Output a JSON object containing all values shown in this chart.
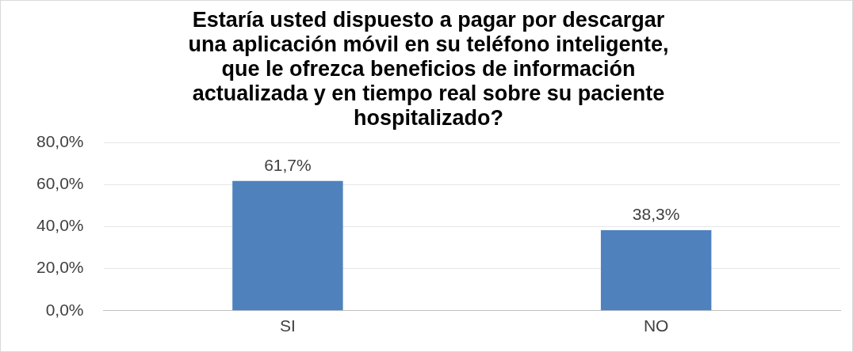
{
  "chart_data": {
    "type": "bar",
    "title": "Estaría usted dispuesto a pagar por descargar una aplicación móvil en su teléfono inteligente, que le ofrezca beneficios de información actualizada y en tiempo real sobre su paciente hospitalizado?",
    "categories": [
      "SI",
      "NO"
    ],
    "values": [
      61.7,
      38.3
    ],
    "color": "#4f81bd",
    "value_labels": [
      "61,7%",
      "38,3%"
    ],
    "ylim": [
      0,
      80
    ],
    "yticks": [
      {
        "value": 0,
        "label": "0,0%"
      },
      {
        "value": 20,
        "label": "20,0%"
      },
      {
        "value": 40,
        "label": "40,0%"
      },
      {
        "value": 60,
        "label": "60,0%"
      },
      {
        "value": 80,
        "label": "80,0%"
      }
    ],
    "grid": "y"
  }
}
